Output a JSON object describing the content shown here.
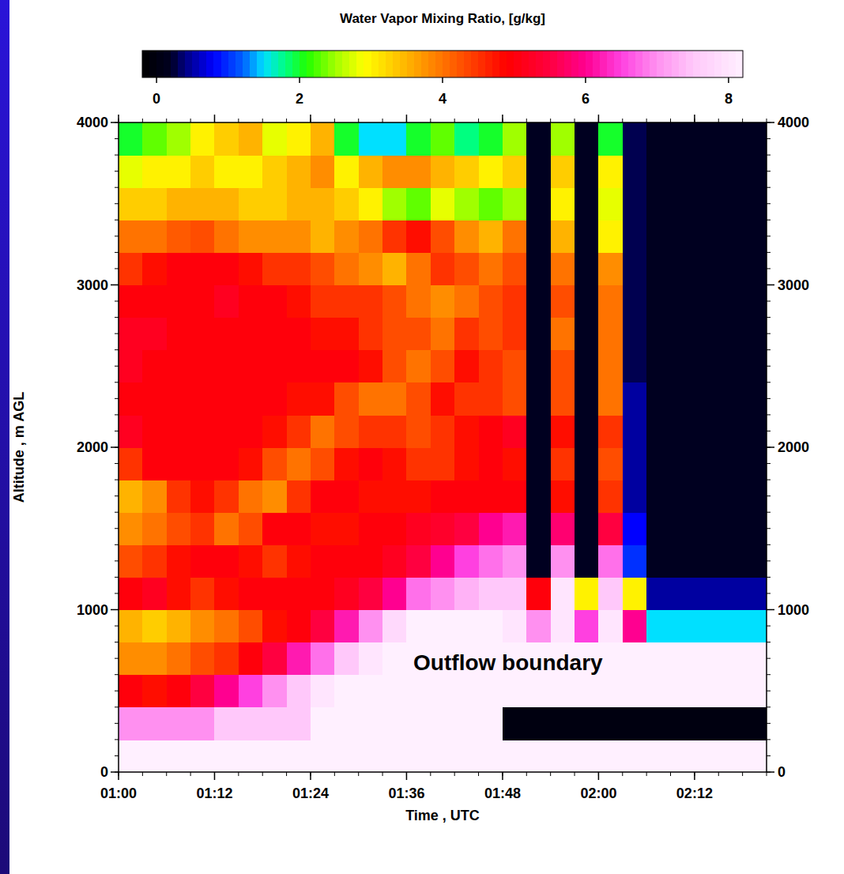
{
  "chart_data": {
    "type": "heatmap",
    "colorbar_title": "Water Vapor Mixing Ratio, [g/kg]",
    "x_label": "Time , UTC",
    "y_label": "Altitude , m AGL",
    "xlim": [
      60,
      141
    ],
    "ylim": [
      0,
      4000
    ],
    "xticks": [
      {
        "value": 60,
        "label": "01:00"
      },
      {
        "value": 72,
        "label": "01:12"
      },
      {
        "value": 84,
        "label": "01:24"
      },
      {
        "value": 96,
        "label": "01:36"
      },
      {
        "value": 108,
        "label": "01:48"
      },
      {
        "value": 120,
        "label": "02:00"
      },
      {
        "value": 132,
        "label": "02:12"
      }
    ],
    "yticks": [
      0,
      1000,
      2000,
      3000,
      4000
    ],
    "colorbar_range": [
      -0.2,
      8.2
    ],
    "colorbar_ticks": [
      0,
      2,
      4,
      6,
      8
    ],
    "annotations": [
      {
        "text": "Outflow boundary"
      }
    ],
    "x_bins": [
      60,
      63,
      66,
      69,
      72,
      75,
      78,
      81,
      84,
      87,
      90,
      93,
      96,
      99,
      102,
      105,
      108,
      111,
      114,
      117,
      120,
      123,
      126,
      129,
      132,
      135,
      138,
      141
    ],
    "y_bins": [
      0,
      200,
      400,
      600,
      800,
      1000,
      1200,
      1400,
      1600,
      1800,
      2000,
      2200,
      2400,
      2600,
      2800,
      3000,
      3200,
      3400,
      3600,
      3800,
      4000
    ],
    "cells": [
      [
        8.2,
        8.2,
        8.2,
        8.2,
        8.2,
        8.2,
        8.2,
        8.2,
        8.2,
        8.2,
        8.2,
        8.2,
        8.2,
        8.2,
        8.2,
        8.2,
        8.2,
        8.2,
        8.2,
        8.2,
        8.2,
        8.2,
        8.2,
        8.2,
        8.2,
        8.2,
        8.2
      ],
      [
        7.0,
        7.0,
        7.0,
        7.0,
        7.5,
        7.5,
        7.5,
        7.5,
        8.2,
        8.2,
        8.2,
        8.2,
        8.2,
        8.2,
        8.2,
        8.2,
        0,
        0,
        0,
        0,
        0,
        0,
        0,
        0,
        0,
        0,
        0
      ],
      [
        5.0,
        4.8,
        5.0,
        5.5,
        6.0,
        6.5,
        7.0,
        7.5,
        8.0,
        8.2,
        8.2,
        8.2,
        8.2,
        8.2,
        8.2,
        8.2,
        8.2,
        8.2,
        8.2,
        8.2,
        8.2,
        8.2,
        8.2,
        8.2,
        8.2,
        8.2,
        8.2
      ],
      [
        3.8,
        3.8,
        4.0,
        4.3,
        4.5,
        5.0,
        5.5,
        6.2,
        6.8,
        7.5,
        8.0,
        8.2,
        8.2,
        8.2,
        8.2,
        8.2,
        8.2,
        8.2,
        8.2,
        8.2,
        8.2,
        8.2,
        8.2,
        8.2,
        8.2,
        8.2,
        8.2
      ],
      [
        3.5,
        3.3,
        3.5,
        3.8,
        4.0,
        4.3,
        4.8,
        5.0,
        5.5,
        6.2,
        7.0,
        7.8,
        8.2,
        8.2,
        8.2,
        8.2,
        8.0,
        7.0,
        8.0,
        6.5,
        8.0,
        6.0,
        1.5,
        1.5,
        1.5,
        1.5,
        1.5
      ],
      [
        5.0,
        5.2,
        4.8,
        4.5,
        4.8,
        5.0,
        5.0,
        5.0,
        5.0,
        5.2,
        5.5,
        6.0,
        6.8,
        7.0,
        7.3,
        7.5,
        7.5,
        5.0,
        8.0,
        3.0,
        7.5,
        3.0,
        0.5,
        0.5,
        0.5,
        0.5,
        0.5
      ],
      [
        4.3,
        4.5,
        4.8,
        5.0,
        5.0,
        4.8,
        4.5,
        4.8,
        5.0,
        5.0,
        5.0,
        5.2,
        5.5,
        6.0,
        6.5,
        6.8,
        7.0,
        0.2,
        7.0,
        0.2,
        6.8,
        1.0,
        0.2,
        0.2,
        0.2,
        0.2,
        0.2
      ],
      [
        3.8,
        4.0,
        4.3,
        4.5,
        4.0,
        4.3,
        5.0,
        5.0,
        4.8,
        4.8,
        5.0,
        5.0,
        5.2,
        5.3,
        5.5,
        6.0,
        6.2,
        0.2,
        5.8,
        0.2,
        5.5,
        0.8,
        0.2,
        0.2,
        0.2,
        0.2,
        0.2
      ],
      [
        3.5,
        3.8,
        4.5,
        4.8,
        4.5,
        4.0,
        3.8,
        4.5,
        5.0,
        5.0,
        4.8,
        4.8,
        4.8,
        5.0,
        5.0,
        5.0,
        5.0,
        0.2,
        4.8,
        0.2,
        4.5,
        0.5,
        0.2,
        0.2,
        0.2,
        0.2,
        0.2
      ],
      [
        4.5,
        5.0,
        5.0,
        5.0,
        5.0,
        4.8,
        4.3,
        4.0,
        4.3,
        4.8,
        5.0,
        4.8,
        4.5,
        4.5,
        4.8,
        5.0,
        4.8,
        0.2,
        4.5,
        0.2,
        4.3,
        0.5,
        0.2,
        0.2,
        0.2,
        0.2,
        0.2
      ],
      [
        5.2,
        5.0,
        5.0,
        5.0,
        5.0,
        5.0,
        4.8,
        4.5,
        4.0,
        4.3,
        4.5,
        4.5,
        4.3,
        4.5,
        4.8,
        5.0,
        5.2,
        0.2,
        4.8,
        0.2,
        4.5,
        0.5,
        0.2,
        0.2,
        0.2,
        0.2,
        0.2
      ],
      [
        5.0,
        5.0,
        5.0,
        5.0,
        5.0,
        5.0,
        5.0,
        4.8,
        4.8,
        4.3,
        4.0,
        4.0,
        4.3,
        4.8,
        4.5,
        4.5,
        4.3,
        0.2,
        4.3,
        0.2,
        4.0,
        0.5,
        0.2,
        0.2,
        0.2,
        0.2,
        0.2
      ],
      [
        5.2,
        5.0,
        5.0,
        5.0,
        5.0,
        5.0,
        5.0,
        5.0,
        5.0,
        5.0,
        4.8,
        4.3,
        4.0,
        4.3,
        4.8,
        4.5,
        4.3,
        0.2,
        4.3,
        0.2,
        4.0,
        0.3,
        0.2,
        0.2,
        0.2,
        0.2,
        0.2
      ],
      [
        5.2,
        5.2,
        5.0,
        5.0,
        5.0,
        5.0,
        5.0,
        5.0,
        4.8,
        4.8,
        4.5,
        4.3,
        4.3,
        4.0,
        4.5,
        4.3,
        4.5,
        0.2,
        4.0,
        0.2,
        4.0,
        0.3,
        0.2,
        0.2,
        0.2,
        0.2,
        0.2
      ],
      [
        5.0,
        5.0,
        5.0,
        5.0,
        5.2,
        5.0,
        5.0,
        4.8,
        4.5,
        4.5,
        4.5,
        4.3,
        4.0,
        3.8,
        4.0,
        4.3,
        4.5,
        0.2,
        4.3,
        0.2,
        4.0,
        0.3,
        0.2,
        0.2,
        0.2,
        0.2,
        0.2
      ],
      [
        4.5,
        4.8,
        5.0,
        5.0,
        5.0,
        4.8,
        4.5,
        4.5,
        4.3,
        4.0,
        3.8,
        3.5,
        4.0,
        4.5,
        4.3,
        4.0,
        4.3,
        0.2,
        4.0,
        0.2,
        3.8,
        0.3,
        0.2,
        0.2,
        0.2,
        0.2,
        0.2
      ],
      [
        4.0,
        4.0,
        4.2,
        4.3,
        4.0,
        3.8,
        3.8,
        3.8,
        3.5,
        3.8,
        4.0,
        4.5,
        4.8,
        4.3,
        3.8,
        3.5,
        4.0,
        0.2,
        3.5,
        0.2,
        3.0,
        0.3,
        0.2,
        0.2,
        0.2,
        0.2,
        0.2
      ],
      [
        3.3,
        3.3,
        3.5,
        3.5,
        3.5,
        3.3,
        3.3,
        3.5,
        3.5,
        3.3,
        3.0,
        2.5,
        2.3,
        2.8,
        2.5,
        2.3,
        2.5,
        0.2,
        3.0,
        0.2,
        2.8,
        0.3,
        0.2,
        0.2,
        0.2,
        0.2,
        0.2
      ],
      [
        2.8,
        3.0,
        3.0,
        3.3,
        3.0,
        3.0,
        3.3,
        3.5,
        3.8,
        3.0,
        3.5,
        3.8,
        3.8,
        3.5,
        3.3,
        3.0,
        3.3,
        0.2,
        3.3,
        0.2,
        3.0,
        0.3,
        0.2,
        0.2,
        0.2,
        0.2,
        0.2
      ],
      [
        2.0,
        2.3,
        2.5,
        3.0,
        3.3,
        3.5,
        2.8,
        3.0,
        3.5,
        2.0,
        1.5,
        1.5,
        2.0,
        2.3,
        1.8,
        2.0,
        2.5,
        0.2,
        2.5,
        0.2,
        2.0,
        0.3,
        0.2,
        0.2,
        0.2,
        0.2,
        0.2
      ]
    ]
  }
}
